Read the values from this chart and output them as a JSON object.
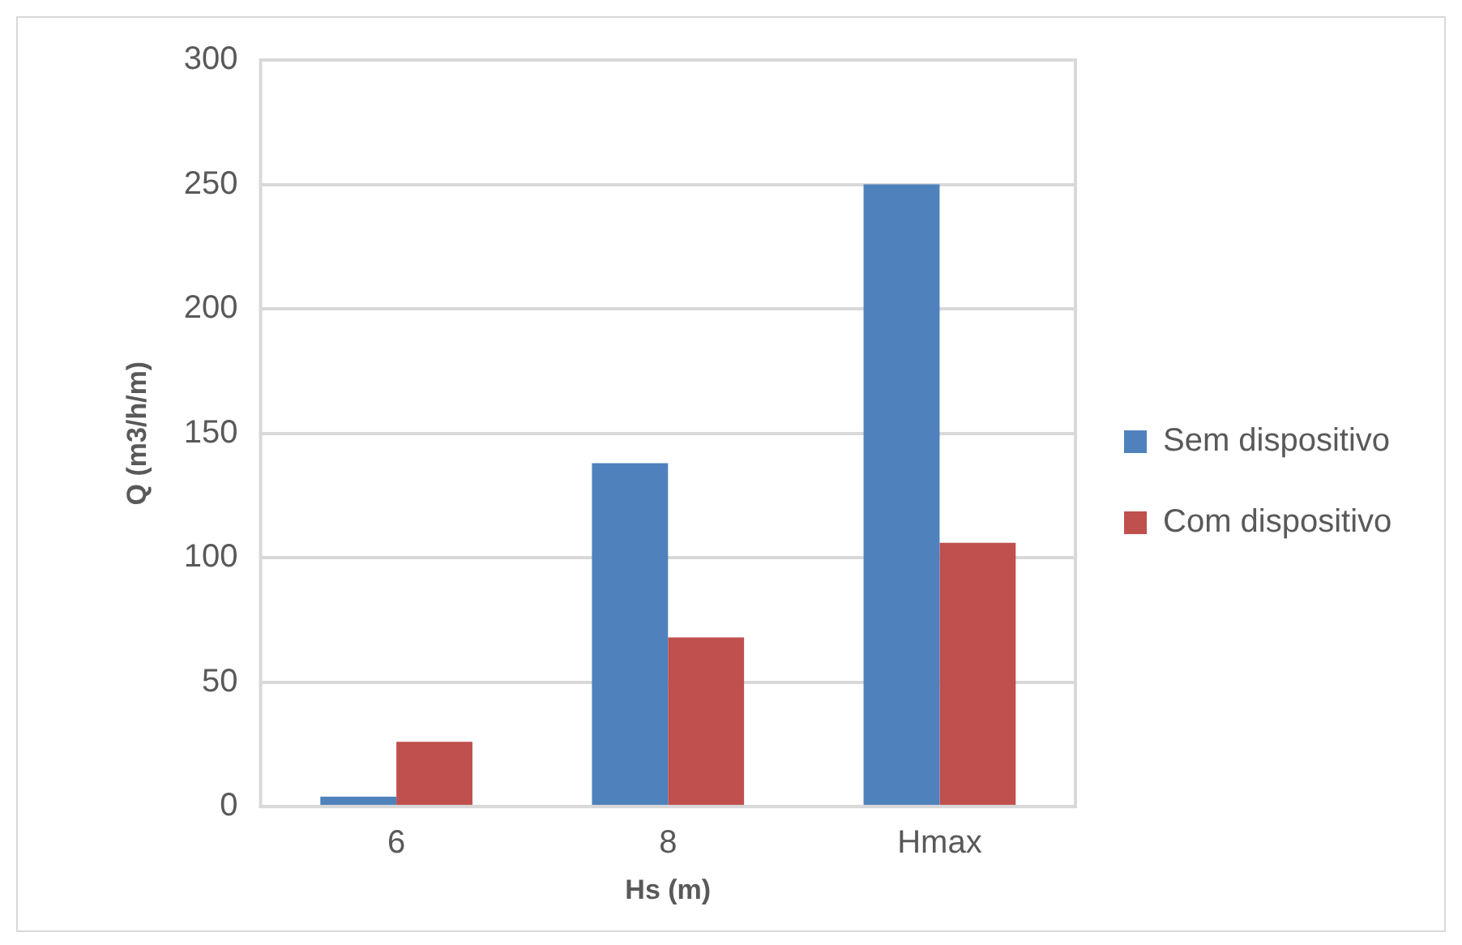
{
  "chart_data": {
    "type": "bar",
    "xlabel": "Hs (m)",
    "ylabel": "Q (m3/h/m)",
    "categories": [
      "6",
      "8",
      "Hmax"
    ],
    "series": [
      {
        "name": "Sem dispositivo",
        "color": "#4f81bd",
        "values": [
          4,
          138,
          250
        ]
      },
      {
        "name": "Com dispositivo",
        "color": "#c0504d",
        "values": [
          26,
          68,
          106
        ]
      }
    ],
    "ylim": [
      0,
      300
    ],
    "yticks": [
      0,
      50,
      100,
      150,
      200,
      250,
      300
    ],
    "grid": "y",
    "legend": "right"
  }
}
